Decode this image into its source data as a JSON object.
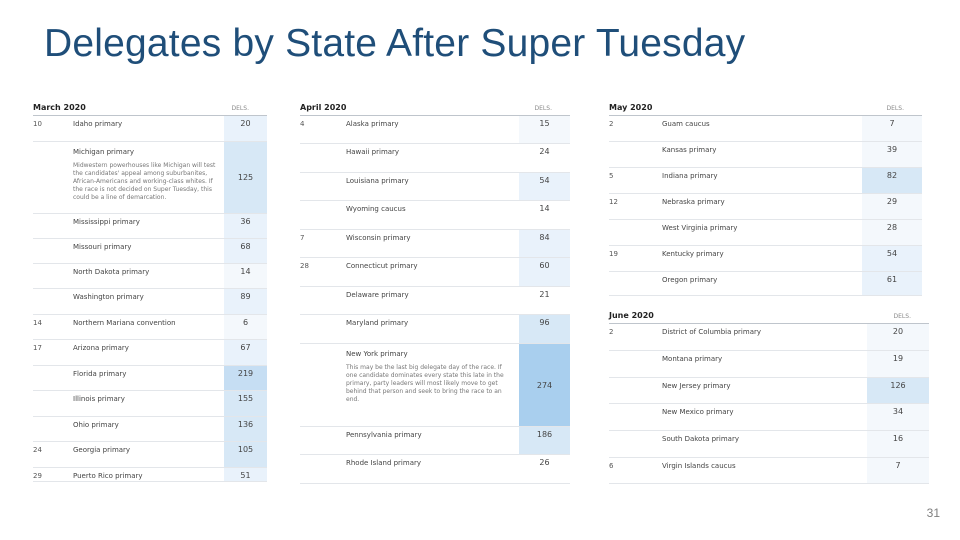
{
  "title": "Delegates by State After Super Tuesday",
  "page_number": "31",
  "colors": {
    "title": "#1f4e79",
    "shade_light": "#e9f2fb",
    "shade_mid": "#d7e8f6",
    "shade_dark": "#a9cfee"
  },
  "panels": {
    "march": {
      "month": "March 2020",
      "dels_label": "DELS.",
      "rows": [
        {
          "date": "10",
          "name": "Idaho primary",
          "value": "20",
          "h": 26,
          "shade": "#e9f2fb"
        },
        {
          "date": "",
          "name": "Michigan primary",
          "note": "Midwestern powerhouses like Michigan will test the candidates' appeal among suburbanites, African-Americans and working-class whites. If the race is not decided on Super Tuesday, this could be a line of demarcation.",
          "value": "125",
          "h": 72,
          "shade": "#d7e8f6"
        },
        {
          "date": "",
          "name": "Mississippi primary",
          "value": "36",
          "h": 25,
          "shade": "#e9f2fb"
        },
        {
          "date": "",
          "name": "Missouri primary",
          "value": "68",
          "h": 25,
          "shade": "#e9f2fb"
        },
        {
          "date": "",
          "name": "North Dakota primary",
          "value": "14",
          "h": 25,
          "shade": "#f4f8fc"
        },
        {
          "date": "",
          "name": "Washington primary",
          "value": "89",
          "h": 26,
          "shade": "#e9f2fb"
        },
        {
          "date": "14",
          "name": "Northern Mariana convention",
          "value": "6",
          "h": 25,
          "shade": "#f4f8fc"
        },
        {
          "date": "17",
          "name": "Arizona primary",
          "value": "67",
          "h": 26,
          "shade": "#e9f2fb"
        },
        {
          "date": "",
          "name": "Florida primary",
          "value": "219",
          "h": 25,
          "shade": "#c6def3"
        },
        {
          "date": "",
          "name": "Illinois primary",
          "value": "155",
          "h": 26,
          "shade": "#d7e8f6"
        },
        {
          "date": "",
          "name": "Ohio primary",
          "value": "136",
          "h": 25,
          "shade": "#d7e8f6"
        },
        {
          "date": "24",
          "name": "Georgia primary",
          "value": "105",
          "h": 26,
          "shade": "#d7e8f6"
        },
        {
          "date": "29",
          "name": "Puerto Rico primary",
          "value": "51",
          "h": 14,
          "shade": "#e9f2fb"
        }
      ]
    },
    "april": {
      "month": "April 2020",
      "dels_label": "DELS.",
      "rows": [
        {
          "date": "4",
          "name": "Alaska primary",
          "value": "15",
          "h": 28,
          "shade": "#f4f8fc"
        },
        {
          "date": "",
          "name": "Hawaii primary",
          "value": "24",
          "h": 29,
          "shade": "#ffffff"
        },
        {
          "date": "",
          "name": "Louisiana primary",
          "value": "54",
          "h": 28,
          "shade": "#e9f2fb"
        },
        {
          "date": "",
          "name": "Wyoming caucus",
          "value": "14",
          "h": 29,
          "shade": "#ffffff"
        },
        {
          "date": "7",
          "name": "Wisconsin primary",
          "value": "84",
          "h": 28,
          "shade": "#e9f2fb"
        },
        {
          "date": "28",
          "name": "Connecticut primary",
          "value": "60",
          "h": 29,
          "shade": "#e9f2fb"
        },
        {
          "date": "",
          "name": "Delaware primary",
          "value": "21",
          "h": 28,
          "shade": "#ffffff"
        },
        {
          "date": "",
          "name": "Maryland primary",
          "value": "96",
          "h": 29,
          "shade": "#d7e8f6"
        },
        {
          "date": "",
          "name": "New York primary",
          "note": "This may be the last big delegate day of the race. If one candidate dominates every state this late in the primary, party leaders will most likely move to get behind that person and seek to bring the race to an end.",
          "value": "274",
          "h": 83,
          "shade": "#a9cfee"
        },
        {
          "date": "",
          "name": "Pennsylvania primary",
          "value": "186",
          "h": 28,
          "shade": "#d7e8f6"
        },
        {
          "date": "",
          "name": "Rhode Island primary",
          "value": "26",
          "h": 29,
          "shade": "#ffffff"
        }
      ]
    },
    "may": {
      "month": "May 2020",
      "dels_label": "DELS.",
      "rows": [
        {
          "date": "2",
          "name": "Guam caucus",
          "value": "7",
          "h": 26,
          "shade": "#f4f8fc"
        },
        {
          "date": "",
          "name": "Kansas primary",
          "value": "39",
          "h": 26,
          "shade": "#f4f8fc"
        },
        {
          "date": "5",
          "name": "Indiana primary",
          "value": "82",
          "h": 26,
          "shade": "#d7e8f6"
        },
        {
          "date": "12",
          "name": "Nebraska primary",
          "value": "29",
          "h": 26,
          "shade": "#f4f8fc"
        },
        {
          "date": "",
          "name": "West Virginia primary",
          "value": "28",
          "h": 26,
          "shade": "#f4f8fc"
        },
        {
          "date": "19",
          "name": "Kentucky primary",
          "value": "54",
          "h": 26,
          "shade": "#e9f2fb"
        },
        {
          "date": "",
          "name": "Oregon primary",
          "value": "61",
          "h": 24,
          "shade": "#e9f2fb"
        }
      ]
    },
    "june": {
      "month": "June 2020",
      "dels_label": "DELS.",
      "rows": [
        {
          "date": "2",
          "name": "District of Columbia primary",
          "value": "20",
          "h": 27,
          "shade": "#f4f8fc"
        },
        {
          "date": "",
          "name": "Montana primary",
          "value": "19",
          "h": 27,
          "shade": "#f4f8fc"
        },
        {
          "date": "",
          "name": "New Jersey primary",
          "value": "126",
          "h": 26,
          "shade": "#d7e8f6"
        },
        {
          "date": "",
          "name": "New Mexico primary",
          "value": "34",
          "h": 27,
          "shade": "#f4f8fc"
        },
        {
          "date": "",
          "name": "South Dakota primary",
          "value": "16",
          "h": 27,
          "shade": "#f4f8fc"
        },
        {
          "date": "6",
          "name": "Virgin Islands caucus",
          "value": "7",
          "h": 26,
          "shade": "#f4f8fc"
        }
      ]
    }
  }
}
